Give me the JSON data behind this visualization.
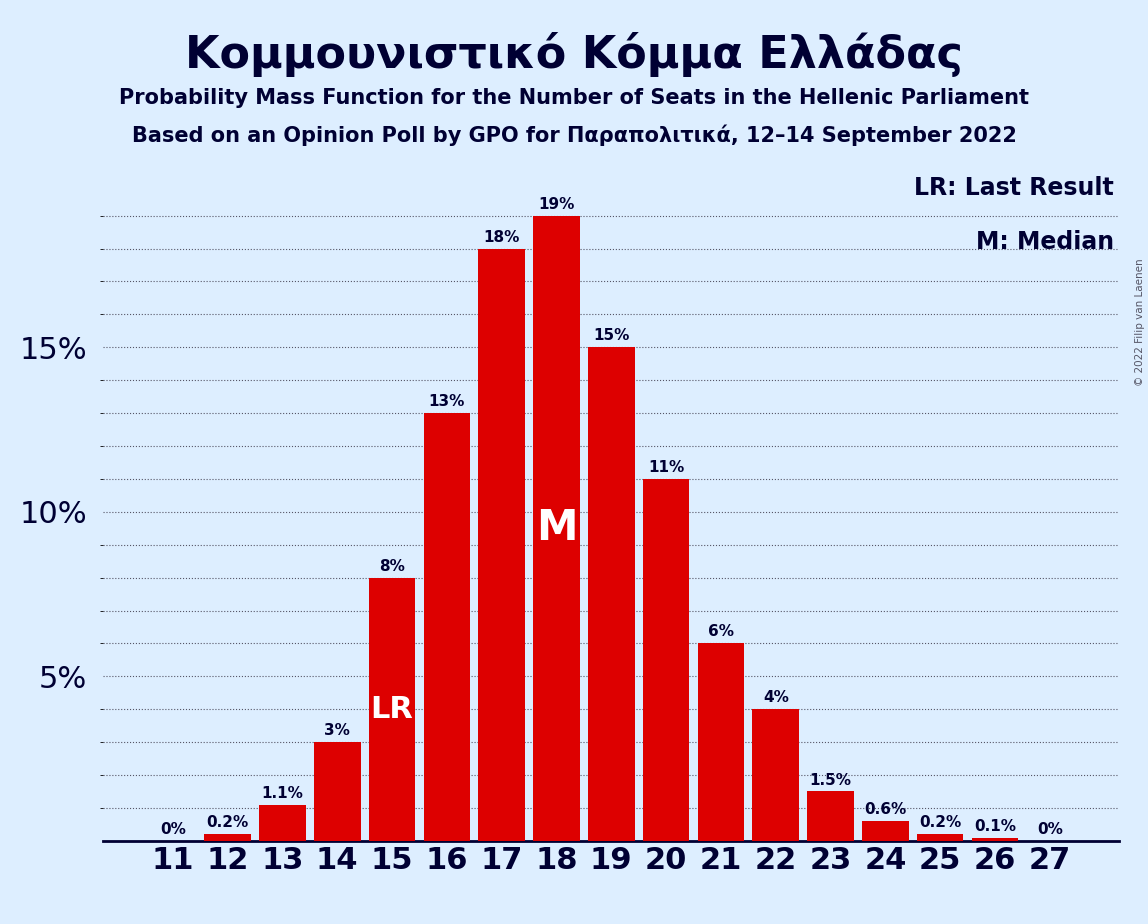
{
  "title": "Κομμουνιστικό Κόμμα Ελλάδας",
  "subtitle1": "Probability Mass Function for the Number of Seats in the Hellenic Parliament",
  "subtitle2": "Based on an Opinion Poll by GPO for Παραπολιτικά, 12–14 September 2022",
  "copyright": "© 2022 Filip van Laenen",
  "categories": [
    11,
    12,
    13,
    14,
    15,
    16,
    17,
    18,
    19,
    20,
    21,
    22,
    23,
    24,
    25,
    26,
    27
  ],
  "values": [
    0.0,
    0.2,
    1.1,
    3.0,
    8.0,
    13.0,
    18.0,
    19.0,
    15.0,
    11.0,
    6.0,
    4.0,
    1.5,
    0.6,
    0.2,
    0.1,
    0.0
  ],
  "bar_color": "#DD0000",
  "background_color": "#ddeeff",
  "text_color": "#000033",
  "lr_bar": 15,
  "median_bar": 18,
  "yticks": [
    5,
    10,
    15
  ],
  "ylim": [
    0,
    20.5
  ],
  "legend_lr": "LR: Last Result",
  "legend_m": "M: Median",
  "lr_label": "LR",
  "m_label": "M"
}
